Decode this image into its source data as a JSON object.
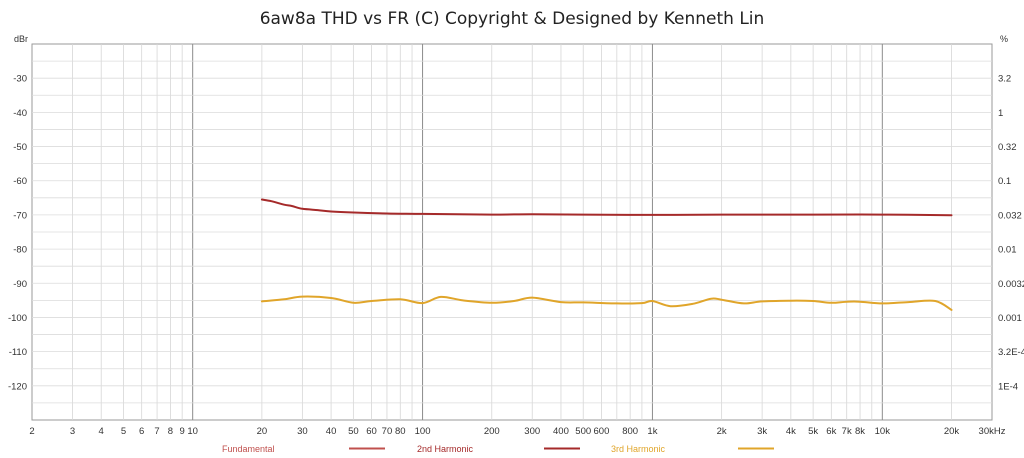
{
  "chart_data": {
    "type": "line",
    "title": "6aw8a THD vs FR (C) Copyright & Designed by Kenneth Lin",
    "y_left_unit": "dBr",
    "y_right_unit": "%",
    "x_scale": "log",
    "xlim": [
      2,
      30000
    ],
    "ylim": [
      -130,
      -20
    ],
    "x_tick_labels": [
      {
        "v": 2,
        "t": "2"
      },
      {
        "v": 3,
        "t": "3"
      },
      {
        "v": 4,
        "t": "4"
      },
      {
        "v": 5,
        "t": "5"
      },
      {
        "v": 6,
        "t": "6"
      },
      {
        "v": 7,
        "t": "7"
      },
      {
        "v": 8,
        "t": "8"
      },
      {
        "v": 9,
        "t": "9"
      },
      {
        "v": 10,
        "t": "10"
      },
      {
        "v": 20,
        "t": "20"
      },
      {
        "v": 30,
        "t": "30"
      },
      {
        "v": 40,
        "t": "40"
      },
      {
        "v": 50,
        "t": "50"
      },
      {
        "v": 60,
        "t": "60"
      },
      {
        "v": 70,
        "t": "70"
      },
      {
        "v": 80,
        "t": "80"
      },
      {
        "v": 100,
        "t": "100"
      },
      {
        "v": 200,
        "t": "200"
      },
      {
        "v": 300,
        "t": "300"
      },
      {
        "v": 400,
        "t": "400"
      },
      {
        "v": 500,
        "t": "500"
      },
      {
        "v": 600,
        "t": "600"
      },
      {
        "v": 800,
        "t": "800"
      },
      {
        "v": 1000,
        "t": "1k"
      },
      {
        "v": 2000,
        "t": "2k"
      },
      {
        "v": 3000,
        "t": "3k"
      },
      {
        "v": 4000,
        "t": "4k"
      },
      {
        "v": 5000,
        "t": "5k"
      },
      {
        "v": 6000,
        "t": "6k"
      },
      {
        "v": 7000,
        "t": "7k"
      },
      {
        "v": 8000,
        "t": "8k"
      },
      {
        "v": 10000,
        "t": "10k"
      },
      {
        "v": 20000,
        "t": "20k"
      },
      {
        "v": 30000,
        "t": "30kHz"
      }
    ],
    "y_left_ticks": [
      {
        "v": -30,
        "t": "-30"
      },
      {
        "v": -40,
        "t": "-40"
      },
      {
        "v": -50,
        "t": "-50"
      },
      {
        "v": -60,
        "t": "-60"
      },
      {
        "v": -70,
        "t": "-70"
      },
      {
        "v": -80,
        "t": "-80"
      },
      {
        "v": -90,
        "t": "-90"
      },
      {
        "v": -100,
        "t": "-100"
      },
      {
        "v": -110,
        "t": "-110"
      },
      {
        "v": -120,
        "t": "-120"
      }
    ],
    "y_right_ticks": [
      {
        "v": -30,
        "t": "3.2"
      },
      {
        "v": -40,
        "t": "1"
      },
      {
        "v": -50,
        "t": "0.32"
      },
      {
        "v": -60,
        "t": "0.1"
      },
      {
        "v": -70,
        "t": "0.032"
      },
      {
        "v": -80,
        "t": "0.01"
      },
      {
        "v": -90,
        "t": "0.0032"
      },
      {
        "v": -100,
        "t": "0.001"
      },
      {
        "v": -110,
        "t": "3.2E-4"
      },
      {
        "v": -120,
        "t": "1E-4"
      }
    ],
    "grid": true,
    "legend_position": "bottom",
    "series": [
      {
        "name": "Fundamental",
        "color": "#c0504d",
        "x": [],
        "y": []
      },
      {
        "name": "2nd Harmonic",
        "color": "#a52a2a",
        "x": [
          20,
          22,
          25,
          27,
          30,
          35,
          40,
          50,
          70,
          100,
          200,
          300,
          500,
          1000,
          2000,
          5000,
          10000,
          20000
        ],
        "y": [
          -65.5,
          -66.0,
          -67.0,
          -67.4,
          -68.2,
          -68.6,
          -69.0,
          -69.3,
          -69.6,
          -69.7,
          -69.9,
          -69.8,
          -69.9,
          -70.0,
          -69.9,
          -69.9,
          -69.9,
          -70.1
        ]
      },
      {
        "name": "3rd Harmonic",
        "color": "#e0a52a",
        "x": [
          20,
          25,
          30,
          40,
          50,
          60,
          80,
          100,
          120,
          150,
          200,
          250,
          300,
          400,
          500,
          700,
          900,
          1000,
          1200,
          1500,
          1800,
          2000,
          2500,
          3000,
          4000,
          5000,
          6000,
          7000,
          8000,
          10000,
          13000,
          17000,
          20000
        ],
        "y": [
          -95.3,
          -94.7,
          -93.9,
          -94.3,
          -95.7,
          -95.2,
          -94.7,
          -95.8,
          -94.0,
          -95.0,
          -95.7,
          -95.2,
          -94.2,
          -95.5,
          -95.6,
          -95.9,
          -95.8,
          -95.2,
          -96.7,
          -96.0,
          -94.5,
          -94.8,
          -95.9,
          -95.3,
          -95.1,
          -95.2,
          -95.7,
          -95.4,
          -95.4,
          -95.9,
          -95.5,
          -95.2,
          -97.8
        ]
      }
    ]
  }
}
